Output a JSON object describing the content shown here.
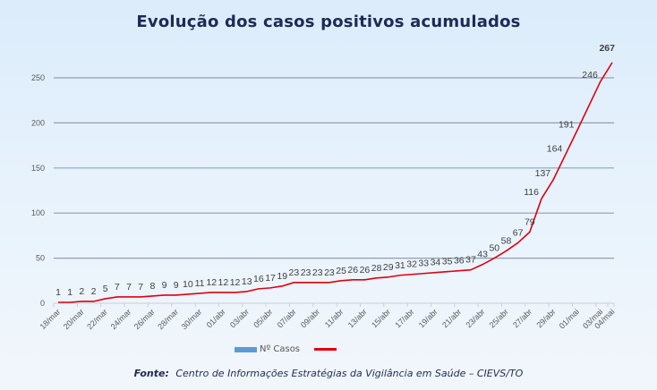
{
  "chart_data": {
    "type": "line",
    "title": "Evolução dos casos positivos acumulados",
    "xlabel": "",
    "ylabel": "",
    "ylim": [
      0,
      270
    ],
    "yticks": [
      0,
      50,
      100,
      150,
      200,
      250
    ],
    "grid": true,
    "legend": "bottom",
    "legend_entries": [
      "Nº Casos",
      ""
    ],
    "x": [
      "18/mar",
      "19/mar",
      "20/mar",
      "21/mar",
      "22/mar",
      "23/mar",
      "24/mar",
      "25/mar",
      "26/mar",
      "27/mar",
      "28/mar",
      "29/mar",
      "30/mar",
      "31/mar",
      "01/abr",
      "02/abr",
      "03/abr",
      "04/abr",
      "05/abr",
      "06/abr",
      "07/abr",
      "08/abr",
      "09/abr",
      "10/abr",
      "11/abr",
      "12/abr",
      "13/abr",
      "14/abr",
      "15/abr",
      "16/abr",
      "17/abr",
      "18/abr",
      "19/abr",
      "20/abr",
      "21/abr",
      "22/abr",
      "23/abr",
      "24/abr",
      "25/abr",
      "26/abr",
      "27/abr",
      "28/abr",
      "29/abr",
      "30/abr",
      "01/mai",
      "03/mai",
      "04/mai"
    ],
    "xtick_labels": [
      "18/mar",
      "20/mar",
      "22/mar",
      "24/mar",
      "26/mar",
      "28/mar",
      "30/mar",
      "01/abr",
      "03/abr",
      "05/abr",
      "07/abr",
      "09/abr",
      "11/abr",
      "13/abr",
      "15/abr",
      "17/abr",
      "19/abr",
      "21/abr",
      "23/abr",
      "25/abr",
      "27/abr",
      "29/abr",
      "01/mai",
      "03/mai",
      "04/mai"
    ],
    "series": [
      {
        "name": "Nº Casos",
        "color": "#e0000f",
        "values": [
          1,
          1,
          2,
          2,
          5,
          7,
          7,
          7,
          8,
          9,
          9,
          10,
          11,
          12,
          12,
          12,
          13,
          16,
          17,
          19,
          23,
          23,
          23,
          23,
          25,
          26,
          26,
          28,
          29,
          31,
          32,
          33,
          34,
          35,
          36,
          37,
          43,
          50,
          58,
          67,
          79,
          116,
          137,
          164,
          191,
          246,
          267
        ]
      }
    ]
  },
  "source": {
    "label": "Fonte:",
    "text": "Centro de Informações Estratégias da Vigilância em Saúde – CIEVS/TO"
  }
}
